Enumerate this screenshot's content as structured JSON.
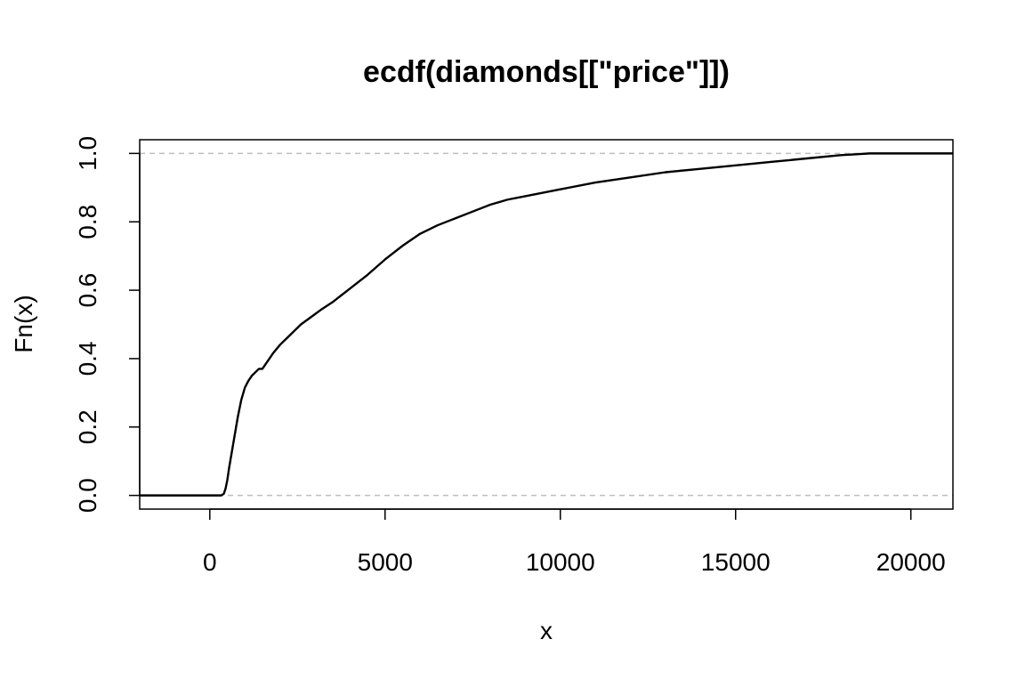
{
  "chart_data": {
    "type": "line",
    "title": "ecdf(diamonds[[\"price\"]])",
    "xlabel": "x",
    "ylabel": "Fn(x)",
    "xlim": [
      -2000,
      21200
    ],
    "ylim": [
      -0.04,
      1.04
    ],
    "x_ticks": [
      0,
      5000,
      10000,
      15000,
      20000
    ],
    "x_tick_labels": [
      "0",
      "5000",
      "10000",
      "15000",
      "20000"
    ],
    "y_ticks": [
      0.0,
      0.2,
      0.4,
      0.6,
      0.8,
      1.0
    ],
    "y_tick_labels": [
      "0.0",
      "0.2",
      "0.4",
      "0.6",
      "0.8",
      "1.0"
    ],
    "reference_lines": [
      0,
      1
    ],
    "reference_line_color": "#bebebe",
    "line_color": "#000000",
    "grid": false,
    "series": [
      {
        "x": [
          -2000,
          326,
          400,
          450,
          500,
          550,
          600,
          650,
          700,
          750,
          800,
          900,
          1000,
          1100,
          1200,
          1300,
          1400,
          1500,
          1600,
          1700,
          1800,
          2000,
          2200,
          2400,
          2600,
          2800,
          3000,
          3200,
          3500,
          4000,
          4500,
          5000,
          5500,
          6000,
          6500,
          7000,
          7500,
          8000,
          8500,
          9000,
          10000,
          11000,
          12000,
          13000,
          14000,
          15000,
          16000,
          17000,
          18000,
          18500,
          18823,
          21200
        ],
        "y": [
          0.0,
          0.0,
          0.005,
          0.02,
          0.045,
          0.08,
          0.11,
          0.14,
          0.17,
          0.2,
          0.23,
          0.28,
          0.315,
          0.335,
          0.35,
          0.36,
          0.37,
          0.37,
          0.385,
          0.4,
          0.415,
          0.44,
          0.46,
          0.48,
          0.5,
          0.515,
          0.53,
          0.545,
          0.565,
          0.605,
          0.645,
          0.69,
          0.73,
          0.765,
          0.79,
          0.81,
          0.83,
          0.85,
          0.865,
          0.875,
          0.895,
          0.915,
          0.93,
          0.945,
          0.955,
          0.965,
          0.975,
          0.985,
          0.995,
          0.998,
          1.0,
          1.0
        ]
      }
    ]
  }
}
